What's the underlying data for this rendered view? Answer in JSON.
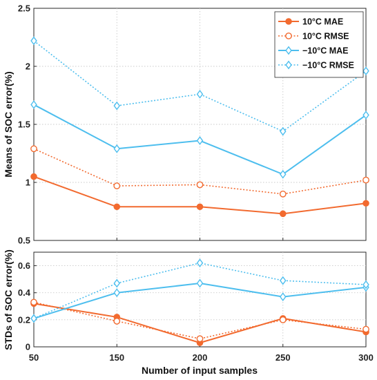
{
  "chart_data": {
    "xlabel": "Number of input samples",
    "x_tick_labels": [
      "50",
      "150",
      "200",
      "250",
      "300"
    ],
    "legend": {
      "placement": "top-right",
      "entries": [
        "10°C MAE",
        "10°C RMSE",
        "−10°C MAE",
        "−10°C RMSE"
      ]
    },
    "colors": {
      "orange": "#F26A2F",
      "blue": "#4DBEEE"
    },
    "panels": [
      {
        "type": "line",
        "ylabel": "Means of SOC error(%)",
        "ylim": [
          0.5,
          2.5
        ],
        "y_ticks": [
          "0.5",
          "1",
          "1.5",
          "2",
          "2.5"
        ],
        "grid": true,
        "x": [
          "50",
          "150",
          "200",
          "250",
          "300"
        ],
        "series": [
          {
            "name": "10°C MAE",
            "values": [
              1.05,
              0.79,
              0.79,
              0.73,
              0.82
            ],
            "color": "#F26A2F",
            "style": "solid",
            "marker": "circle"
          },
          {
            "name": "10°C RMSE",
            "values": [
              1.29,
              0.97,
              0.98,
              0.9,
              1.02
            ],
            "color": "#F26A2F",
            "style": "dotted",
            "marker": "circle-open"
          },
          {
            "name": "−10°C MAE",
            "values": [
              1.67,
              1.29,
              1.36,
              1.07,
              1.58
            ],
            "color": "#4DBEEE",
            "style": "solid",
            "marker": "diamond"
          },
          {
            "name": "−10°C RMSE",
            "values": [
              2.22,
              1.66,
              1.76,
              1.44,
              1.96
            ],
            "color": "#4DBEEE",
            "style": "dotted",
            "marker": "diamond-open"
          }
        ]
      },
      {
        "type": "line",
        "ylabel": "STDs of SOC error(%)",
        "ylim": [
          0,
          0.7
        ],
        "y_ticks": [
          "0",
          "0.2",
          "0.4",
          "0.6"
        ],
        "grid": true,
        "x": [
          "50",
          "150",
          "200",
          "250",
          "300"
        ],
        "series": [
          {
            "name": "10°C MAE",
            "values": [
              0.32,
              0.22,
              0.03,
              0.21,
              0.11
            ],
            "color": "#F26A2F",
            "style": "solid",
            "marker": "circle"
          },
          {
            "name": "10°C RMSE",
            "values": [
              0.33,
              0.19,
              0.06,
              0.2,
              0.13
            ],
            "color": "#F26A2F",
            "style": "dotted",
            "marker": "circle-open"
          },
          {
            "name": "−10°C MAE",
            "values": [
              0.21,
              0.4,
              0.47,
              0.37,
              0.44
            ],
            "color": "#4DBEEE",
            "style": "solid",
            "marker": "diamond"
          },
          {
            "name": "−10°C RMSE",
            "values": [
              0.21,
              0.47,
              0.62,
              0.49,
              0.46
            ],
            "color": "#4DBEEE",
            "style": "dotted",
            "marker": "diamond-open"
          }
        ]
      }
    ]
  }
}
